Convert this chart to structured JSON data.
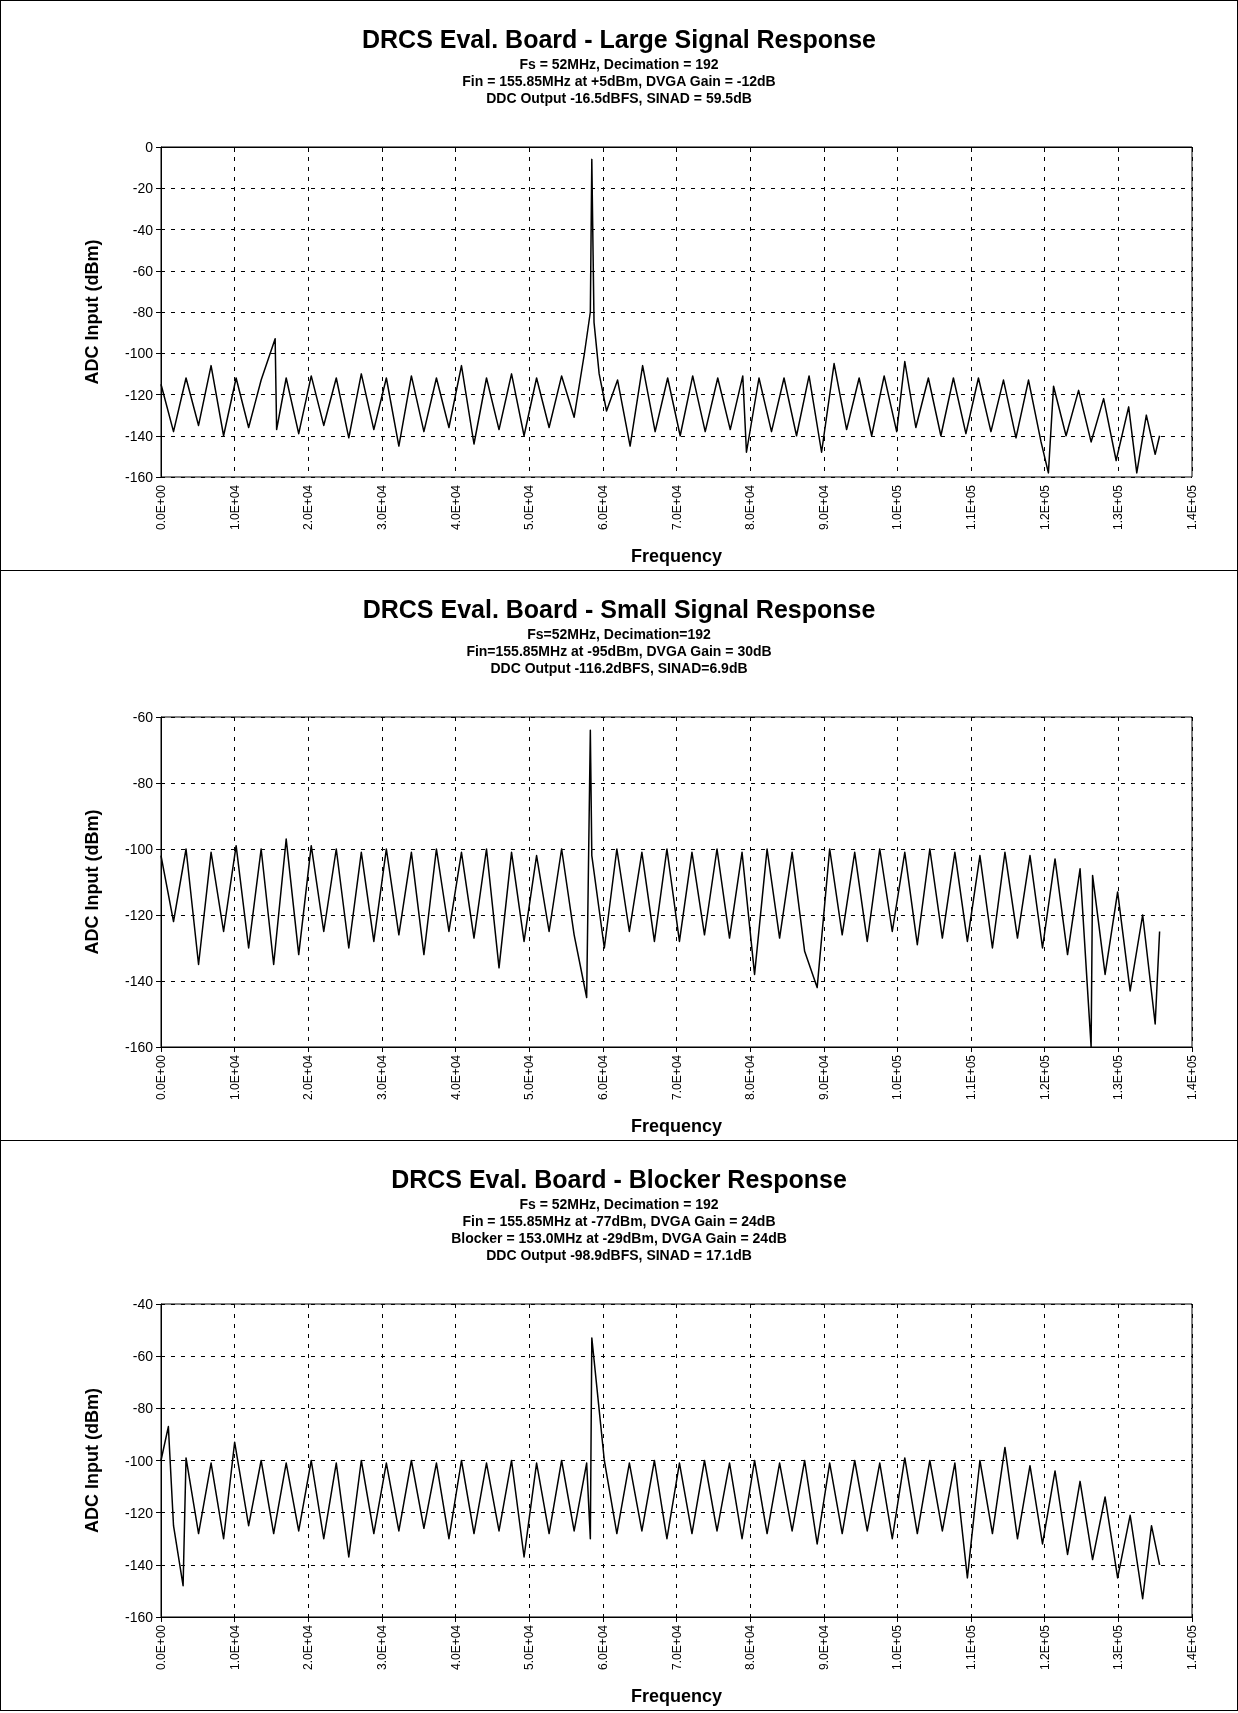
{
  "chart_data": [
    {
      "type": "line",
      "title": "DRCS Eval. Board - Large Signal Response",
      "subtitle": "Fs = 52MHz, Decimation = 192\nFin = 155.85MHz at +5dBm, DVGA Gain = -12dB\nDDC Output -16.5dBFS, SINAD = 59.5dB",
      "xlabel": "Frequency",
      "ylabel": "ADC Input (dBm)",
      "xlim": [
        0,
        140000
      ],
      "xticks": [
        {
          "value": 0,
          "label": "0.0E+00"
        },
        {
          "value": 10000,
          "label": "1.0E+04"
        },
        {
          "value": 20000,
          "label": "2.0E+04"
        },
        {
          "value": 30000,
          "label": "3.0E+04"
        },
        {
          "value": 40000,
          "label": "4.0E+04"
        },
        {
          "value": 50000,
          "label": "5.0E+04"
        },
        {
          "value": 60000,
          "label": "6.0E+04"
        },
        {
          "value": 70000,
          "label": "7.0E+04"
        },
        {
          "value": 80000,
          "label": "8.0E+04"
        },
        {
          "value": 90000,
          "label": "9.0E+04"
        },
        {
          "value": 100000,
          "label": "1.0E+05"
        },
        {
          "value": 110000,
          "label": "1.1E+05"
        },
        {
          "value": 120000,
          "label": "1.2E+05"
        },
        {
          "value": 130000,
          "label": "1.3E+05"
        },
        {
          "value": 140000,
          "label": "1.4E+05"
        }
      ],
      "ylim": [
        -160,
        0
      ],
      "yticks": [
        -160,
        -140,
        -120,
        -100,
        -80,
        -60,
        -40,
        -20,
        0
      ],
      "grid": true,
      "marker": "none",
      "x": [
        0,
        1700,
        3400,
        5100,
        6800,
        8500,
        10200,
        11900,
        13600,
        15500,
        15700,
        17000,
        18700,
        20400,
        22100,
        23800,
        25500,
        27200,
        28900,
        30600,
        32300,
        34000,
        35700,
        37400,
        39100,
        40800,
        42500,
        44200,
        45900,
        47600,
        49300,
        51000,
        52700,
        54400,
        56100,
        57500,
        58300,
        58500,
        58800,
        59500,
        60500,
        62000,
        63700,
        65400,
        67100,
        68800,
        70500,
        72200,
        73900,
        75600,
        77300,
        79000,
        79500,
        81200,
        82900,
        84600,
        86300,
        88000,
        89700,
        91400,
        93100,
        94800,
        96500,
        98200,
        99900,
        101000,
        102500,
        104200,
        105900,
        107600,
        109300,
        111000,
        112700,
        114400,
        116100,
        117800,
        119500,
        120500,
        121200,
        122900,
        124600,
        126300,
        128000,
        129700,
        131400,
        132500,
        133800,
        135000,
        135600
      ],
      "series": [
        {
          "color": "#000000",
          "values": [
            -115,
            -138,
            -112,
            -135,
            -106,
            -140,
            -112,
            -136,
            -113,
            -93,
            -137,
            -112,
            -139,
            -111,
            -135,
            -112,
            -141,
            -110,
            -137,
            -112,
            -145,
            -111,
            -138,
            -112,
            -136,
            -106,
            -144,
            -112,
            -137,
            -110,
            -140,
            -112,
            -136,
            -111,
            -131,
            -100,
            -80,
            -6,
            -85,
            -110,
            -128,
            -113,
            -145,
            -106,
            -138,
            -112,
            -140,
            -111,
            -138,
            -112,
            -137,
            -111,
            -148,
            -112,
            -138,
            -112,
            -140,
            -111,
            -148,
            -105,
            -137,
            -112,
            -140,
            -111,
            -138,
            -104,
            -136,
            -112,
            -140,
            -112,
            -139,
            -112,
            -138,
            -113,
            -141,
            -113,
            -143,
            -158,
            -116,
            -140,
            -118,
            -143,
            -122,
            -152,
            -126,
            -158,
            -130,
            -149,
            -140
          ]
        }
      ]
    },
    {
      "type": "line",
      "title": "DRCS Eval. Board - Small Signal Response",
      "subtitle": "Fs=52MHz, Decimation=192\nFin=155.85MHz at -95dBm, DVGA Gain = 30dB\nDDC Output -116.2dBFS, SINAD=6.9dB",
      "xlabel": "Frequency",
      "ylabel": "ADC Input (dBm)",
      "xlim": [
        0,
        140000
      ],
      "xticks": [
        {
          "value": 0,
          "label": "0.0E+00"
        },
        {
          "value": 10000,
          "label": "1.0E+04"
        },
        {
          "value": 20000,
          "label": "2.0E+04"
        },
        {
          "value": 30000,
          "label": "3.0E+04"
        },
        {
          "value": 40000,
          "label": "4.0E+04"
        },
        {
          "value": 50000,
          "label": "5.0E+04"
        },
        {
          "value": 60000,
          "label": "6.0E+04"
        },
        {
          "value": 70000,
          "label": "7.0E+04"
        },
        {
          "value": 80000,
          "label": "8.0E+04"
        },
        {
          "value": 90000,
          "label": "9.0E+04"
        },
        {
          "value": 100000,
          "label": "1.0E+05"
        },
        {
          "value": 110000,
          "label": "1.1E+05"
        },
        {
          "value": 120000,
          "label": "1.2E+05"
        },
        {
          "value": 130000,
          "label": "1.3E+05"
        },
        {
          "value": 140000,
          "label": "1.4E+05"
        }
      ],
      "ylim": [
        -160,
        -60
      ],
      "yticks": [
        -160,
        -140,
        -120,
        -100,
        -80,
        -60
      ],
      "grid": true,
      "marker": "none",
      "x": [
        0,
        1700,
        3400,
        5100,
        6800,
        8500,
        10200,
        11900,
        13600,
        15300,
        17000,
        18700,
        20400,
        22100,
        23800,
        25500,
        27200,
        28900,
        30600,
        32300,
        34000,
        35700,
        37400,
        39100,
        40800,
        42500,
        44200,
        45900,
        47600,
        49300,
        51000,
        52700,
        54400,
        56100,
        57800,
        58300,
        58500,
        60200,
        61900,
        63600,
        65300,
        67000,
        68700,
        70400,
        72100,
        73800,
        75500,
        77200,
        78900,
        80600,
        82300,
        84000,
        85700,
        87400,
        89100,
        90800,
        92500,
        94200,
        95900,
        97600,
        99300,
        101000,
        102700,
        104400,
        106100,
        107800,
        109500,
        111200,
        112900,
        114600,
        116300,
        118000,
        119700,
        121400,
        123100,
        124800,
        126300,
        126500,
        128200,
        129900,
        131600,
        133300,
        135000,
        135600
      ],
      "series": [
        {
          "color": "#000000",
          "values": [
            -102,
            -122,
            -100,
            -135,
            -101,
            -125,
            -99,
            -130,
            -100,
            -135,
            -97,
            -132,
            -99,
            -125,
            -100,
            -130,
            -101,
            -128,
            -100,
            -126,
            -101,
            -132,
            -100,
            -125,
            -101,
            -127,
            -100,
            -136,
            -101,
            -128,
            -102,
            -125,
            -100,
            -126,
            -145,
            -64,
            -102,
            -130,
            -100,
            -125,
            -101,
            -128,
            -100,
            -128,
            -101,
            -126,
            -100,
            -127,
            -101,
            -138,
            -100,
            -127,
            -101,
            -131,
            -142,
            -100,
            -126,
            -101,
            -128,
            -100,
            -125,
            -101,
            -129,
            -100,
            -127,
            -101,
            -128,
            -102,
            -130,
            -101,
            -127,
            -102,
            -130,
            -103,
            -132,
            -106,
            -160,
            -108,
            -138,
            -113,
            -143,
            -120,
            -153,
            -125
          ]
        }
      ]
    },
    {
      "type": "line",
      "title": "DRCS Eval. Board - Blocker Response",
      "subtitle": "Fs = 52MHz, Decimation = 192\nFin = 155.85MHz at -77dBm, DVGA Gain = 24dB\nBlocker = 153.0MHz at -29dBm, DVGA Gain = 24dB\nDDC Output -98.9dBFS, SINAD = 17.1dB",
      "xlabel": "Frequency",
      "ylabel": "ADC Input (dBm)",
      "xlim": [
        0,
        140000
      ],
      "xticks": [
        {
          "value": 0,
          "label": "0.0E+00"
        },
        {
          "value": 10000,
          "label": "1.0E+04"
        },
        {
          "value": 20000,
          "label": "2.0E+04"
        },
        {
          "value": 30000,
          "label": "3.0E+04"
        },
        {
          "value": 40000,
          "label": "4.0E+04"
        },
        {
          "value": 50000,
          "label": "5.0E+04"
        },
        {
          "value": 60000,
          "label": "6.0E+04"
        },
        {
          "value": 70000,
          "label": "7.0E+04"
        },
        {
          "value": 80000,
          "label": "8.0E+04"
        },
        {
          "value": 90000,
          "label": "9.0E+04"
        },
        {
          "value": 100000,
          "label": "1.0E+05"
        },
        {
          "value": 110000,
          "label": "1.1E+05"
        },
        {
          "value": 120000,
          "label": "1.2E+05"
        },
        {
          "value": 130000,
          "label": "1.3E+05"
        },
        {
          "value": 140000,
          "label": "1.4E+05"
        }
      ],
      "ylim": [
        -160,
        -40
      ],
      "yticks": [
        -160,
        -140,
        -120,
        -100,
        -80,
        -60,
        -40
      ],
      "grid": true,
      "marker": "none",
      "x": [
        0,
        1000,
        1700,
        3000,
        3400,
        5100,
        6800,
        8500,
        10000,
        11900,
        13600,
        15300,
        17000,
        18700,
        20400,
        22100,
        23800,
        25500,
        27200,
        28900,
        30600,
        32300,
        34000,
        35700,
        37400,
        39100,
        40800,
        42500,
        44200,
        45900,
        47600,
        49300,
        51000,
        52700,
        54400,
        56100,
        57800,
        58300,
        58500,
        60200,
        61900,
        63600,
        65300,
        67000,
        68700,
        70400,
        72100,
        73800,
        75500,
        77200,
        78900,
        80600,
        82300,
        84000,
        85700,
        87400,
        89100,
        90800,
        92500,
        94200,
        95900,
        97600,
        99300,
        101000,
        102700,
        104400,
        106100,
        107800,
        109500,
        111200,
        112900,
        114600,
        116300,
        118000,
        119700,
        121400,
        123100,
        124800,
        126500,
        128200,
        129900,
        131600,
        133300,
        134500,
        135600
      ],
      "series": [
        {
          "color": "#000000",
          "values": [
            -100,
            -87,
            -125,
            -148,
            -99,
            -128,
            -101,
            -130,
            -93,
            -125,
            -100,
            -128,
            -101,
            -127,
            -100,
            -130,
            -101,
            -137,
            -100,
            -128,
            -101,
            -127,
            -100,
            -126,
            -101,
            -130,
            -100,
            -128,
            -101,
            -127,
            -100,
            -137,
            -101,
            -128,
            -100,
            -127,
            -101,
            -130,
            -53,
            -100,
            -128,
            -101,
            -127,
            -100,
            -130,
            -101,
            -128,
            -100,
            -127,
            -101,
            -130,
            -100,
            -128,
            -101,
            -127,
            -100,
            -132,
            -101,
            -128,
            -100,
            -127,
            -101,
            -130,
            -99,
            -128,
            -100,
            -127,
            -101,
            -145,
            -100,
            -128,
            -95,
            -130,
            -102,
            -132,
            -104,
            -136,
            -108,
            -138,
            -114,
            -145,
            -121,
            -153,
            -125,
            -140
          ]
        }
      ]
    }
  ]
}
